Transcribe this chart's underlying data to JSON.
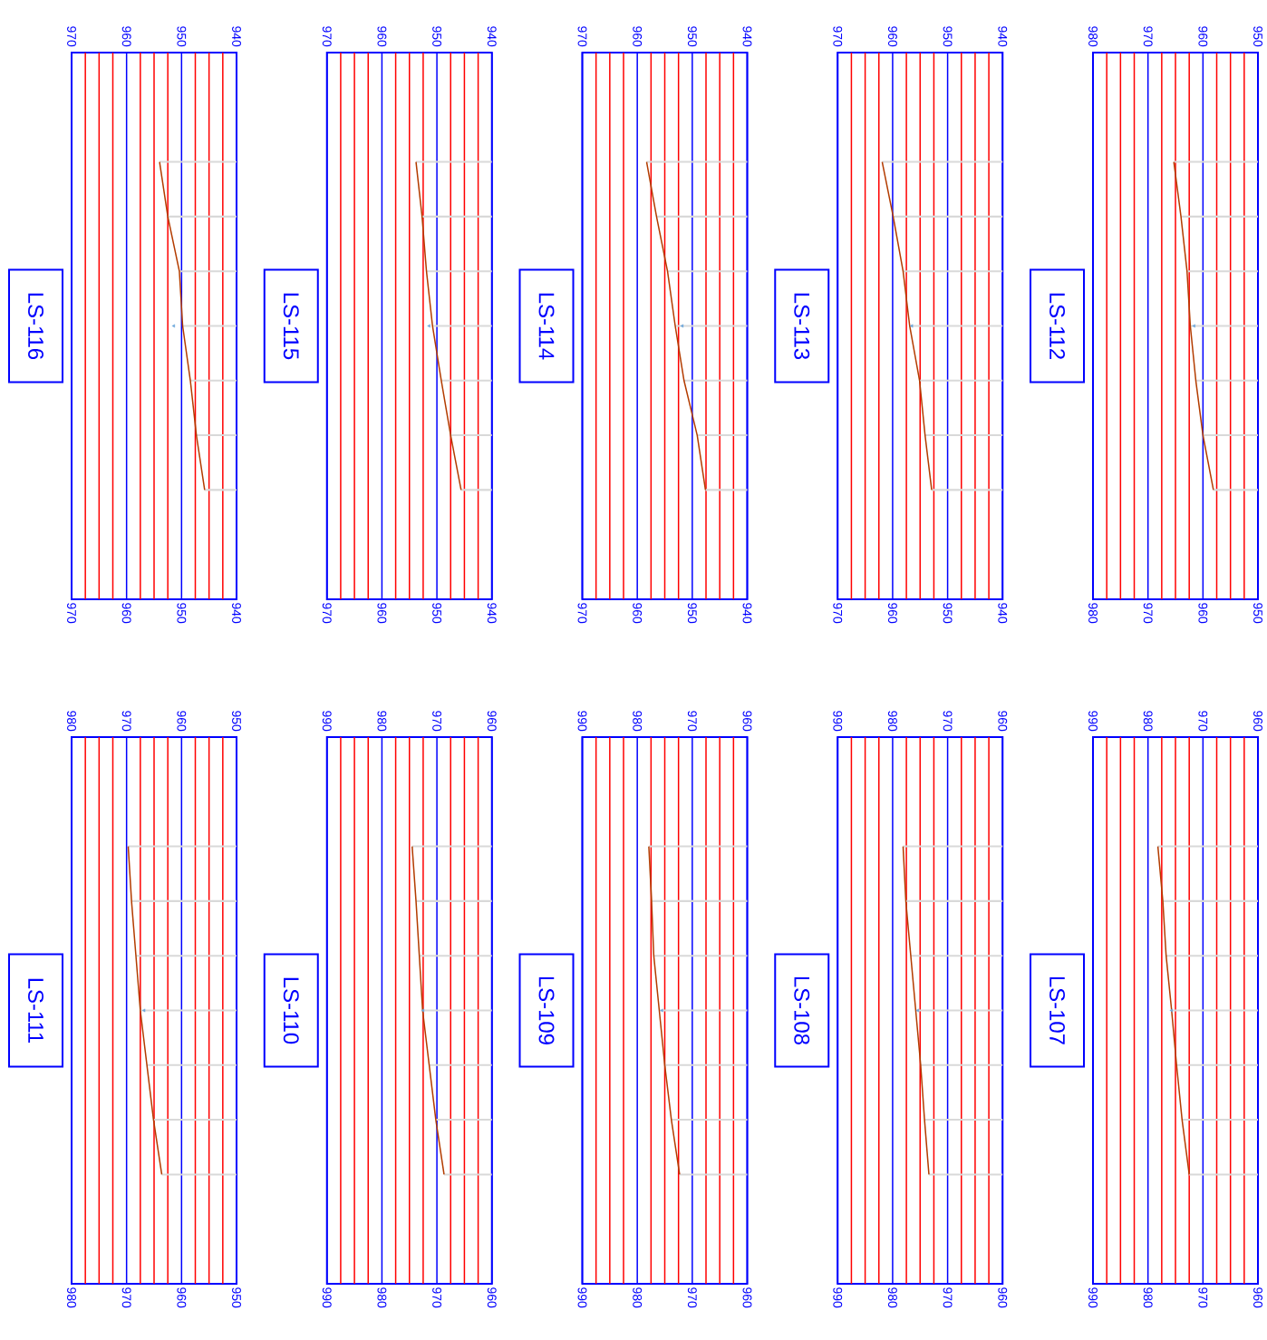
{
  "chart_data": [
    {
      "type": "line",
      "title": "LS-116",
      "orientation": "horizontal",
      "categories": [
        null,
        null,
        null,
        null,
        null,
        null,
        null
      ],
      "xlim": [
        970,
        940
      ],
      "xticks": [
        970,
        {
          "value": 967.5,
          "label": null
        },
        {
          "value": 965,
          "label": null
        },
        {
          "value": 962.5,
          "label": null
        },
        960,
        {
          "value": 957.5,
          "label": null
        },
        {
          "value": 955,
          "label": null
        },
        {
          "value": 952.5,
          "label": null
        },
        950,
        {
          "value": 947.5,
          "label": null
        },
        {
          "value": 945,
          "label": null
        },
        {
          "value": 942.5,
          "label": null
        },
        940
      ],
      "x2lim": [
        970,
        940
      ],
      "x2ticks": [
        970,
        960,
        950,
        940
      ],
      "grid": "x",
      "series": [
        {
          "type": "bar",
          "color": "#d9d9d9",
          "values": [
            954.0,
            952.5,
            950.4,
            949.8,
            948.4,
            947.3,
            945.8
          ]
        },
        {
          "type": "line",
          "color": "#b33c00",
          "values": [
            954.0,
            952.5,
            950.4,
            949.8,
            948.4,
            947.3,
            945.8
          ]
        },
        {
          "type": "scatter",
          "marker": "triangle",
          "color": "#6fa8dc",
          "values": [
            null,
            null,
            null,
            951.4,
            null,
            null,
            null
          ]
        }
      ]
    },
    {
      "type": "line",
      "title": "LS-115",
      "orientation": "horizontal",
      "categories": [
        null,
        null,
        null,
        null,
        null,
        null,
        null
      ],
      "xlim": [
        970,
        940
      ],
      "xticks": [
        970,
        {
          "value": 967.5,
          "label": null
        },
        {
          "value": 965,
          "label": null
        },
        {
          "value": 962.5,
          "label": null
        },
        960,
        {
          "value": 957.5,
          "label": null
        },
        {
          "value": 955,
          "label": null
        },
        {
          "value": 952.5,
          "label": null
        },
        950,
        {
          "value": 947.5,
          "label": null
        },
        {
          "value": 945,
          "label": null
        },
        {
          "value": 942.5,
          "label": null
        },
        940
      ],
      "x2lim": [
        970,
        940
      ],
      "x2ticks": [
        970,
        960,
        950,
        940
      ],
      "grid": "x",
      "series": [
        {
          "type": "bar",
          "color": "#d9d9d9",
          "values": [
            953.8,
            952.7,
            951.9,
            950.8,
            949.2,
            947.5,
            945.6
          ]
        },
        {
          "type": "line",
          "color": "#b33c00",
          "values": [
            953.8,
            952.7,
            951.9,
            950.8,
            949.2,
            947.5,
            945.6
          ]
        },
        {
          "type": "scatter",
          "marker": "triangle",
          "color": "#6fa8dc",
          "values": [
            null,
            null,
            null,
            951.4,
            null,
            null,
            null
          ]
        }
      ]
    },
    {
      "type": "line",
      "title": "LS-114",
      "orientation": "horizontal",
      "categories": [
        null,
        null,
        null,
        null,
        null,
        null,
        null
      ],
      "xlim": [
        970,
        940
      ],
      "xticks": [
        970,
        {
          "value": 967.5,
          "label": null
        },
        {
          "value": 965,
          "label": null
        },
        {
          "value": 962.5,
          "label": null
        },
        960,
        {
          "value": 957.5,
          "label": null
        },
        {
          "value": 955,
          "label": null
        },
        {
          "value": 952.5,
          "label": null
        },
        950,
        {
          "value": 947.5,
          "label": null
        },
        {
          "value": 945,
          "label": null
        },
        {
          "value": 942.5,
          "label": null
        },
        940
      ],
      "x2lim": [
        970,
        940
      ],
      "x2ticks": [
        970,
        960,
        950,
        940
      ],
      "grid": "x",
      "series": [
        {
          "type": "bar",
          "color": "#d9d9d9",
          "values": [
            958.3,
            956.5,
            954.5,
            953.1,
            951.5,
            949.1,
            947.6
          ]
        },
        {
          "type": "line",
          "color": "#b33c00",
          "values": [
            958.3,
            956.5,
            954.5,
            953.1,
            951.5,
            949.1,
            947.6
          ]
        },
        {
          "type": "scatter",
          "marker": "triangle",
          "color": "#6fa8dc",
          "values": [
            null,
            null,
            null,
            951.8,
            null,
            null,
            null
          ]
        }
      ]
    },
    {
      "type": "line",
      "title": "LS-113",
      "orientation": "horizontal",
      "categories": [
        null,
        null,
        null,
        null,
        null,
        null,
        null
      ],
      "xlim": [
        970,
        940
      ],
      "xticks": [
        970,
        {
          "value": 967.5,
          "label": null
        },
        {
          "value": 965,
          "label": null
        },
        {
          "value": 962.5,
          "label": null
        },
        960,
        {
          "value": 957.5,
          "label": null
        },
        {
          "value": 955,
          "label": null
        },
        {
          "value": 952.5,
          "label": null
        },
        950,
        {
          "value": 947.5,
          "label": null
        },
        {
          "value": 945,
          "label": null
        },
        {
          "value": 942.5,
          "label": null
        },
        940
      ],
      "x2lim": [
        970,
        940
      ],
      "x2ticks": [
        970,
        960,
        950,
        940
      ],
      "grid": "x",
      "series": [
        {
          "type": "bar",
          "color": "#d9d9d9",
          "values": [
            961.9,
            959.9,
            958.1,
            956.9,
            955.1,
            954.1,
            952.9
          ]
        },
        {
          "type": "line",
          "color": "#b33c00",
          "values": [
            961.9,
            959.9,
            958.1,
            956.9,
            955.1,
            954.1,
            952.9
          ]
        },
        {
          "type": "scatter",
          "marker": "triangle",
          "color": "#6fa8dc",
          "values": [
            null,
            null,
            null,
            956.5,
            null,
            null,
            null
          ]
        }
      ]
    },
    {
      "type": "line",
      "title": "LS-112",
      "orientation": "horizontal",
      "categories": [
        null,
        null,
        null,
        null,
        null,
        null,
        null
      ],
      "xlim": [
        980,
        950
      ],
      "xticks": [
        980,
        {
          "value": 977.5,
          "label": null
        },
        {
          "value": 975,
          "label": null
        },
        {
          "value": 972.5,
          "label": null
        },
        970,
        {
          "value": 967.5,
          "label": null
        },
        {
          "value": 965,
          "label": null
        },
        {
          "value": 962.5,
          "label": null
        },
        960,
        {
          "value": 957.5,
          "label": null
        },
        {
          "value": 955,
          "label": null
        },
        {
          "value": 952.5,
          "label": null
        },
        950
      ],
      "x2lim": [
        980,
        950
      ],
      "x2ticks": [
        980,
        970,
        960,
        950
      ],
      "grid": "x",
      "series": [
        {
          "type": "bar",
          "color": "#d9d9d9",
          "values": [
            965.3,
            964.0,
            962.9,
            962.3,
            961.3,
            960.0,
            958.1
          ]
        },
        {
          "type": "line",
          "color": "#b33c00",
          "values": [
            965.3,
            964.0,
            962.9,
            962.3,
            961.3,
            960.0,
            958.1
          ]
        },
        {
          "type": "scatter",
          "marker": "triangle",
          "color": "#6fa8dc",
          "values": [
            null,
            null,
            null,
            961.6,
            null,
            null,
            null
          ]
        }
      ]
    },
    {
      "type": "line",
      "title": "LS-111",
      "orientation": "horizontal",
      "categories": [
        null,
        null,
        null,
        null,
        null,
        null,
        null
      ],
      "xlim": [
        980,
        950
      ],
      "xticks": [
        980,
        {
          "value": 977.5,
          "label": null
        },
        {
          "value": 975,
          "label": null
        },
        {
          "value": 972.5,
          "label": null
        },
        970,
        {
          "value": 967.5,
          "label": null
        },
        {
          "value": 965,
          "label": null
        },
        {
          "value": 962.5,
          "label": null
        },
        960,
        {
          "value": 957.5,
          "label": null
        },
        {
          "value": 955,
          "label": null
        },
        {
          "value": 952.5,
          "label": null
        },
        950
      ],
      "x2lim": [
        980,
        950
      ],
      "x2ticks": [
        980,
        970,
        960,
        950
      ],
      "grid": "x",
      "series": [
        {
          "type": "bar",
          "color": "#d9d9d9",
          "values": [
            969.7,
            969.1,
            968.3,
            967.5,
            966.3,
            965.1,
            963.6
          ]
        },
        {
          "type": "line",
          "color": "#b33c00",
          "values": [
            969.7,
            969.1,
            968.3,
            967.5,
            966.3,
            965.1,
            963.6
          ]
        },
        {
          "type": "scatter",
          "marker": "triangle",
          "color": "#6fa8dc",
          "values": [
            null,
            null,
            null,
            966.8,
            null,
            null,
            null
          ]
        }
      ]
    },
    {
      "type": "line",
      "title": "LS-110",
      "orientation": "horizontal",
      "categories": [
        null,
        null,
        null,
        null,
        null,
        null,
        null
      ],
      "xlim": [
        990,
        960
      ],
      "xticks": [
        990,
        {
          "value": 987.5,
          "label": null
        },
        {
          "value": 985,
          "label": null
        },
        {
          "value": 982.5,
          "label": null
        },
        980,
        {
          "value": 977.5,
          "label": null
        },
        {
          "value": 975,
          "label": null
        },
        {
          "value": 972.5,
          "label": null
        },
        970,
        {
          "value": 967.5,
          "label": null
        },
        {
          "value": 965,
          "label": null
        },
        {
          "value": 962.5,
          "label": null
        },
        960
      ],
      "x2lim": [
        990,
        960
      ],
      "x2ticks": [
        990,
        980,
        970,
        960
      ],
      "grid": "x",
      "series": [
        {
          "type": "bar",
          "color": "#d9d9d9",
          "values": [
            974.5,
            973.8,
            973.2,
            972.6,
            971.4,
            970.2,
            968.7
          ]
        },
        {
          "type": "line",
          "color": "#b33c00",
          "values": [
            974.5,
            973.8,
            973.2,
            972.6,
            971.4,
            970.2,
            968.7
          ]
        },
        {
          "type": "scatter",
          "marker": "triangle",
          "color": "#6fa8dc",
          "values": [
            null,
            null,
            null,
            972.5,
            null,
            null,
            null
          ]
        }
      ]
    },
    {
      "type": "line",
      "title": "LS-109",
      "orientation": "horizontal",
      "categories": [
        null,
        null,
        null,
        null,
        null,
        null,
        null
      ],
      "xlim": [
        990,
        960
      ],
      "xticks": [
        990,
        {
          "value": 987.5,
          "label": null
        },
        {
          "value": 985,
          "label": null
        },
        {
          "value": 982.5,
          "label": null
        },
        980,
        {
          "value": 977.5,
          "label": null
        },
        {
          "value": 975,
          "label": null
        },
        {
          "value": 972.5,
          "label": null
        },
        970,
        {
          "value": 967.5,
          "label": null
        },
        {
          "value": 965,
          "label": null
        },
        {
          "value": 962.5,
          "label": null
        },
        960
      ],
      "x2lim": [
        990,
        960
      ],
      "x2ticks": [
        990,
        980,
        970,
        960
      ],
      "grid": "x",
      "series": [
        {
          "type": "bar",
          "color": "#d9d9d9",
          "values": [
            977.9,
            977.4,
            977.0,
            976.0,
            975.0,
            973.8,
            972.3
          ]
        },
        {
          "type": "line",
          "color": "#b33c00",
          "values": [
            977.9,
            977.4,
            977.0,
            976.0,
            975.0,
            973.8,
            972.3
          ]
        },
        {
          "type": "scatter",
          "marker": "triangle",
          "color": "#6fa8dc",
          "values": [
            null,
            null,
            null,
            975.5,
            null,
            null,
            null
          ]
        }
      ]
    },
    {
      "type": "line",
      "title": "LS-108",
      "orientation": "horizontal",
      "categories": [
        null,
        null,
        null,
        null,
        null,
        null,
        null
      ],
      "xlim": [
        990,
        960
      ],
      "xticks": [
        990,
        {
          "value": 987.5,
          "label": null
        },
        {
          "value": 985,
          "label": null
        },
        {
          "value": 982.5,
          "label": null
        },
        980,
        {
          "value": 977.5,
          "label": null
        },
        {
          "value": 975,
          "label": null
        },
        {
          "value": 972.5,
          "label": null
        },
        970,
        {
          "value": 967.5,
          "label": null
        },
        {
          "value": 965,
          "label": null
        },
        {
          "value": 962.5,
          "label": null
        },
        960
      ],
      "x2lim": [
        990,
        960
      ],
      "x2ticks": [
        990,
        980,
        970,
        960
      ],
      "grid": "x",
      "series": [
        {
          "type": "bar",
          "color": "#d9d9d9",
          "values": [
            978.1,
            977.6,
            976.7,
            975.8,
            974.9,
            974.2,
            973.4
          ]
        },
        {
          "type": "line",
          "color": "#b33c00",
          "values": [
            978.1,
            977.6,
            976.7,
            975.8,
            974.9,
            974.2,
            973.4
          ]
        },
        {
          "type": "scatter",
          "marker": "triangle",
          "color": "#6fa8dc",
          "values": [
            null,
            null,
            null,
            975.4,
            null,
            null,
            null
          ]
        }
      ]
    },
    {
      "type": "line",
      "title": "LS-107",
      "orientation": "horizontal",
      "categories": [
        null,
        null,
        null,
        null,
        null,
        null,
        null
      ],
      "xlim": [
        990,
        960
      ],
      "xticks": [
        990,
        {
          "value": 987.5,
          "label": null
        },
        {
          "value": 985,
          "label": null
        },
        {
          "value": 982.5,
          "label": null
        },
        980,
        {
          "value": 977.5,
          "label": null
        },
        {
          "value": 975,
          "label": null
        },
        {
          "value": 972.5,
          "label": null
        },
        970,
        {
          "value": 967.5,
          "label": null
        },
        {
          "value": 965,
          "label": null
        },
        {
          "value": 962.5,
          "label": null
        },
        960
      ],
      "x2lim": [
        990,
        960
      ],
      "x2ticks": [
        990,
        980,
        970,
        960
      ],
      "grid": "x",
      "series": [
        {
          "type": "bar",
          "color": "#d9d9d9",
          "values": [
            978.2,
            977.3,
            976.7,
            975.7,
            974.8,
            973.8,
            972.5
          ]
        },
        {
          "type": "line",
          "color": "#b33c00",
          "values": [
            978.2,
            977.3,
            976.7,
            975.7,
            974.8,
            973.8,
            972.5
          ]
        },
        {
          "type": "scatter",
          "marker": "triangle",
          "color": "#6fa8dc",
          "values": [
            null,
            null,
            null,
            975.7,
            null,
            null,
            null
          ]
        }
      ]
    }
  ]
}
